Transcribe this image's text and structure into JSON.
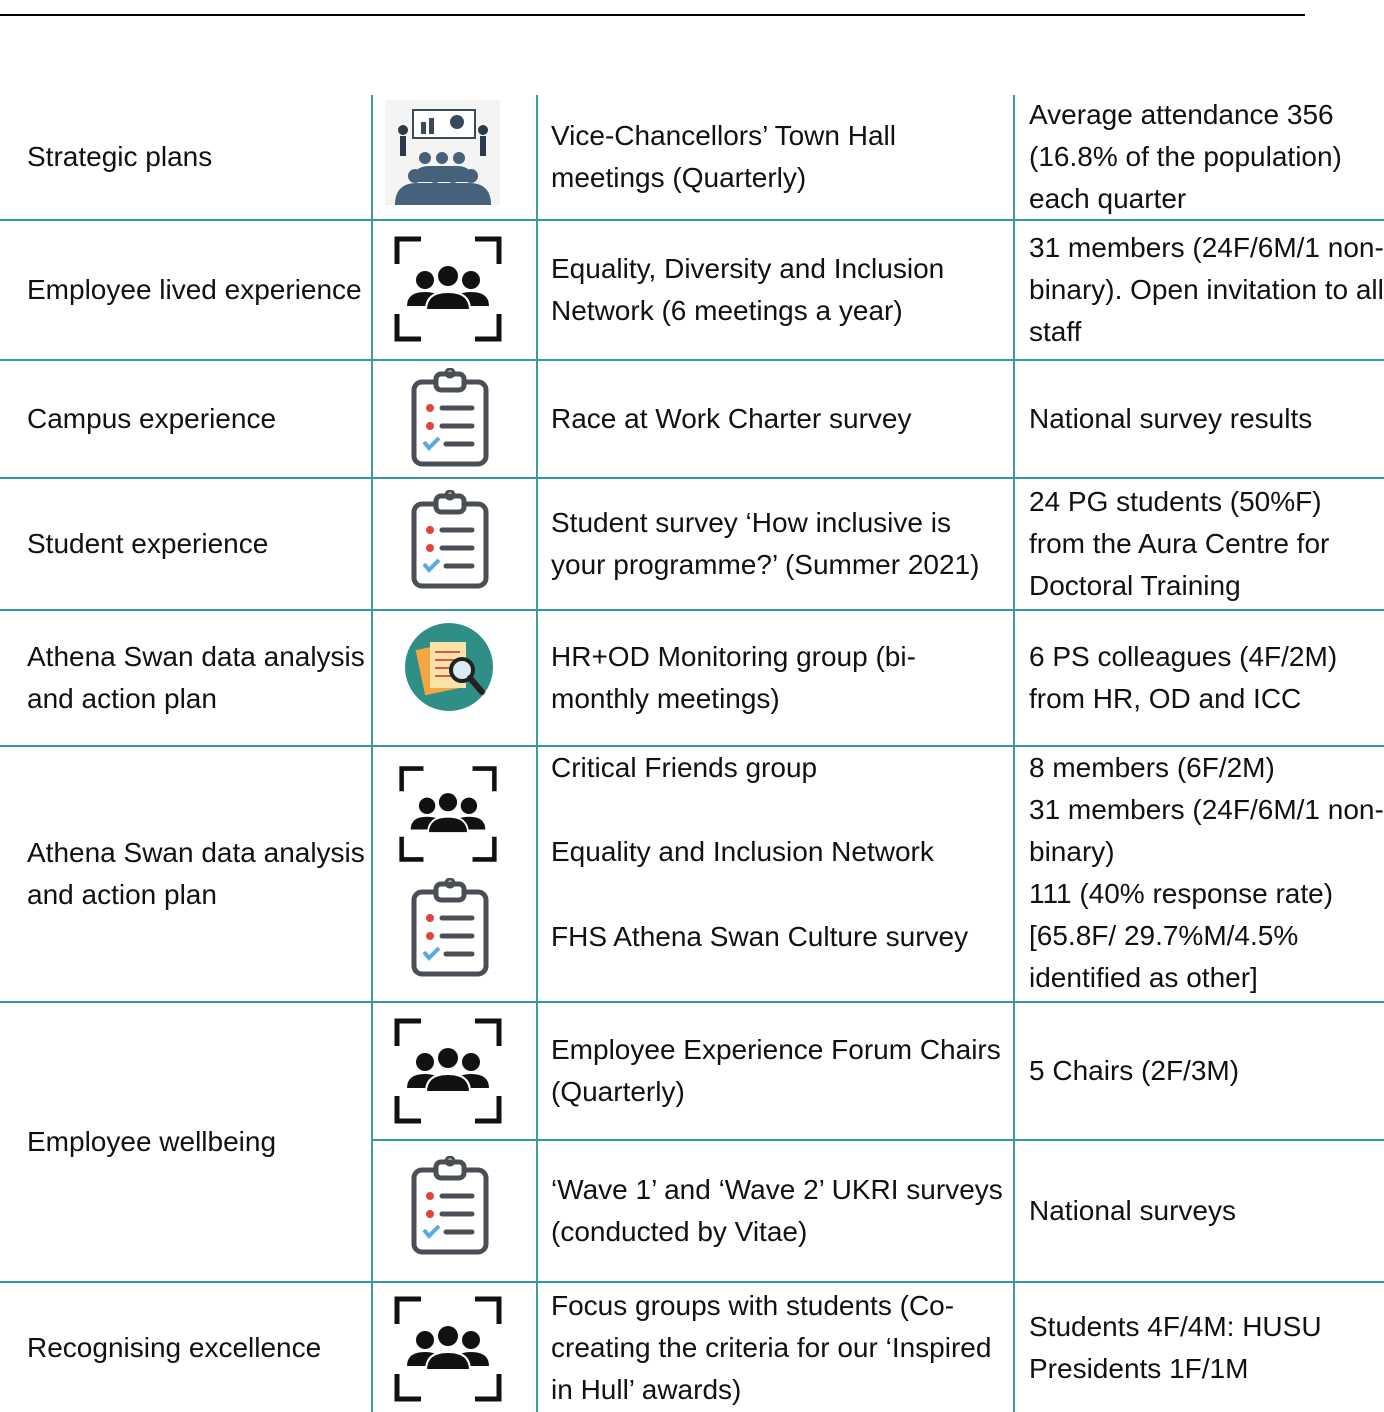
{
  "rows": [
    {
      "area": "Strategic plans",
      "activity": "Vice-Chancellors’ Town Hall meetings (Quarterly)",
      "participants": "Average attendance 356 (16.8% of the population) each quarter"
    },
    {
      "area": "Employee lived experience",
      "activity": "Equality, Diversity and Inclusion Network (6 meetings a year)",
      "participants": "31 members (24F/6M/1 non-binary). Open invitation to all staff"
    },
    {
      "area": "Campus experience",
      "activity": "Race at Work Charter survey",
      "participants": "National survey results"
    },
    {
      "area": "Student experience",
      "activity": "Student survey ‘How inclusive is your programme?’ (Summer 2021)",
      "participants": "24 PG students (50%F) from the Aura Centre for Doctoral Training"
    },
    {
      "area": "Athena Swan data analysis and action plan",
      "activity": "HR+OD Monitoring group (bi-monthly meetings)",
      "participants": "6 PS colleagues (4F/2M) from HR, OD and ICC"
    },
    {
      "area": "Athena Swan data analysis and action plan",
      "activities": [
        "Critical Friends group",
        "Equality and Inclusion Network",
        "FHS Athena Swan Culture survey"
      ],
      "participants": [
        "8 members (6F/2M)",
        "31 members (24F/6M/1 non-binary)",
        "111 (40% response rate) [65.8F/ 29.7%M/4.5% identified as other]"
      ]
    },
    {
      "area": "Employee wellbeing",
      "items": [
        {
          "activity": "Employee Experience Forum Chairs (Quarterly)",
          "participants": "5 Chairs (2F/3M)"
        },
        {
          "activity": "‘Wave 1’ and ‘Wave 2’ UKRI surveys (conducted by Vitae)",
          "participants": "National surveys"
        }
      ]
    },
    {
      "area": "Recognising excellence",
      "activity": "Focus groups with students (Co-creating the criteria for our ‘Inspired in Hull’ awards)",
      "participants": "Students 4F/4M: HUSU Presidents 1F/1M"
    }
  ]
}
